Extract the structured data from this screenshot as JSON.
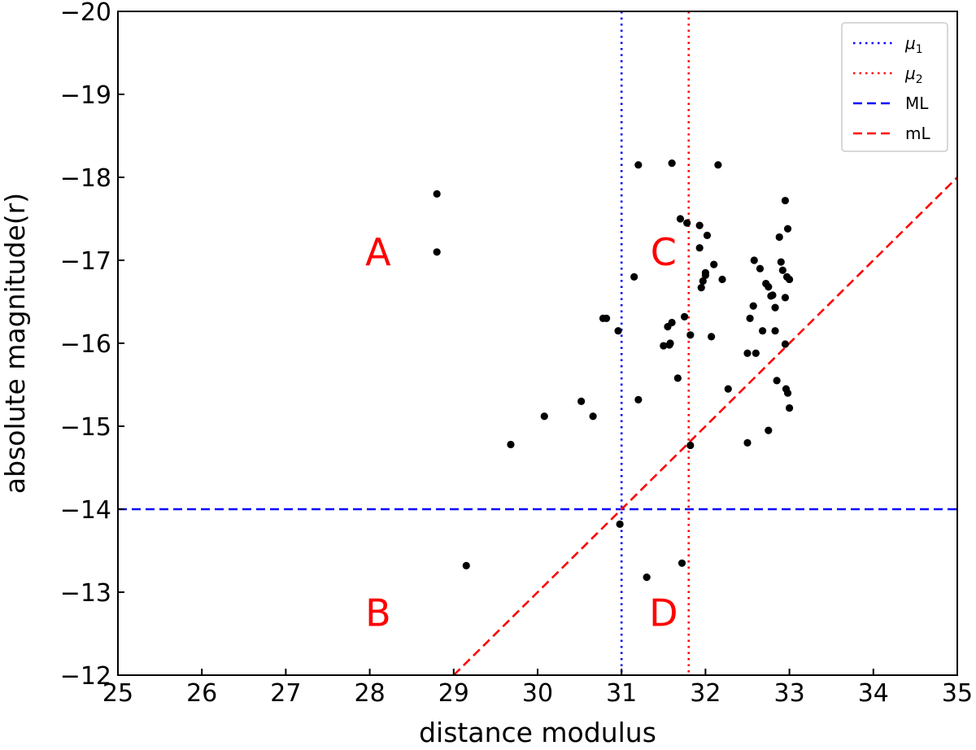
{
  "chart_data": {
    "type": "scatter",
    "xlabel": "distance modulus",
    "ylabel": "absolute magnitude(r)",
    "xlim": [
      25,
      35
    ],
    "ylim": [
      -12,
      -20
    ],
    "y_inverted": true,
    "grid": false,
    "legend_position": "top-right",
    "xticks": [
      25,
      26,
      27,
      28,
      29,
      30,
      31,
      32,
      33,
      34,
      35
    ],
    "yticks": [
      -12,
      -13,
      -14,
      -15,
      -16,
      -17,
      -18,
      -19,
      -20
    ],
    "xtick_labels": [
      "25",
      "26",
      "27",
      "28",
      "29",
      "30",
      "31",
      "32",
      "33",
      "34",
      "35"
    ],
    "ytick_labels": [
      "−12",
      "−13",
      "−14",
      "−15",
      "−16",
      "−17",
      "−18",
      "−19",
      "−20"
    ],
    "points": [
      {
        "x": 28.8,
        "y": -17.8
      },
      {
        "x": 28.8,
        "y": -17.1
      },
      {
        "x": 29.15,
        "y": -13.32
      },
      {
        "x": 29.68,
        "y": -14.78
      },
      {
        "x": 30.08,
        "y": -15.12
      },
      {
        "x": 30.52,
        "y": -15.3
      },
      {
        "x": 30.66,
        "y": -15.12
      },
      {
        "x": 30.78,
        "y": -16.3
      },
      {
        "x": 30.82,
        "y": -16.3
      },
      {
        "x": 30.96,
        "y": -16.15
      },
      {
        "x": 30.98,
        "y": -13.82
      },
      {
        "x": 31.15,
        "y": -16.8
      },
      {
        "x": 31.2,
        "y": -18.15
      },
      {
        "x": 31.2,
        "y": -15.32
      },
      {
        "x": 31.3,
        "y": -13.18
      },
      {
        "x": 31.5,
        "y": -15.97
      },
      {
        "x": 31.55,
        "y": -16.2
      },
      {
        "x": 31.57,
        "y": -15.98
      },
      {
        "x": 31.58,
        "y": -16.0
      },
      {
        "x": 31.6,
        "y": -18.17
      },
      {
        "x": 31.6,
        "y": -16.25
      },
      {
        "x": 31.67,
        "y": -15.58
      },
      {
        "x": 31.7,
        "y": -17.5
      },
      {
        "x": 31.72,
        "y": -13.35
      },
      {
        "x": 31.75,
        "y": -16.32
      },
      {
        "x": 31.78,
        "y": -17.45
      },
      {
        "x": 31.82,
        "y": -16.1
      },
      {
        "x": 31.82,
        "y": -14.77
      },
      {
        "x": 31.93,
        "y": -17.42
      },
      {
        "x": 31.93,
        "y": -17.15
      },
      {
        "x": 31.95,
        "y": -16.67
      },
      {
        "x": 31.97,
        "y": -16.75
      },
      {
        "x": 32.0,
        "y": -16.82
      },
      {
        "x": 32.0,
        "y": -16.85
      },
      {
        "x": 32.02,
        "y": -17.3
      },
      {
        "x": 32.07,
        "y": -16.08
      },
      {
        "x": 32.1,
        "y": -16.95
      },
      {
        "x": 32.15,
        "y": -18.15
      },
      {
        "x": 32.2,
        "y": -16.77
      },
      {
        "x": 32.27,
        "y": -15.45
      },
      {
        "x": 32.5,
        "y": -15.88
      },
      {
        "x": 32.5,
        "y": -14.8
      },
      {
        "x": 32.53,
        "y": -16.3
      },
      {
        "x": 32.57,
        "y": -16.45
      },
      {
        "x": 32.58,
        "y": -17.0
      },
      {
        "x": 32.6,
        "y": -15.88
      },
      {
        "x": 32.65,
        "y": -16.9
      },
      {
        "x": 32.68,
        "y": -16.15
      },
      {
        "x": 32.72,
        "y": -16.72
      },
      {
        "x": 32.75,
        "y": -16.68
      },
      {
        "x": 32.75,
        "y": -14.95
      },
      {
        "x": 32.78,
        "y": -16.57
      },
      {
        "x": 32.8,
        "y": -16.58
      },
      {
        "x": 32.83,
        "y": -16.43
      },
      {
        "x": 32.83,
        "y": -16.15
      },
      {
        "x": 32.85,
        "y": -15.55
      },
      {
        "x": 32.88,
        "y": -17.28
      },
      {
        "x": 32.9,
        "y": -16.98
      },
      {
        "x": 32.92,
        "y": -16.88
      },
      {
        "x": 32.95,
        "y": -17.72
      },
      {
        "x": 32.95,
        "y": -16.55
      },
      {
        "x": 32.95,
        "y": -15.99
      },
      {
        "x": 32.96,
        "y": -15.45
      },
      {
        "x": 32.97,
        "y": -16.8
      },
      {
        "x": 32.98,
        "y": -17.38
      },
      {
        "x": 32.98,
        "y": -15.4
      },
      {
        "x": 33.0,
        "y": -16.77
      },
      {
        "x": 33.0,
        "y": -15.22
      }
    ],
    "series": [
      {
        "name": "μ1",
        "style": "dotted",
        "color": "#0000ff",
        "orientation": "vertical",
        "x": 31.0
      },
      {
        "name": "μ2",
        "style": "dotted",
        "color": "#ff0000",
        "orientation": "vertical",
        "x": 31.8
      },
      {
        "name": "ML",
        "style": "dashed",
        "color": "#0000ff",
        "orientation": "horizontal",
        "y": -14.0
      },
      {
        "name": "mL",
        "style": "dashed",
        "color": "#ff0000",
        "orientation": "diagonal",
        "points": [
          [
            29.0,
            -12.0
          ],
          [
            35.0,
            -18.0
          ]
        ]
      }
    ],
    "region_labels": [
      {
        "text": "A",
        "x": 28.1,
        "y": -17.1
      },
      {
        "text": "B",
        "x": 28.1,
        "y": -12.75
      },
      {
        "text": "C",
        "x": 31.5,
        "y": -17.1
      },
      {
        "text": "D",
        "x": 31.5,
        "y": -12.75
      }
    ],
    "region_label_color": "#ff0000",
    "point_color": "#000000"
  }
}
